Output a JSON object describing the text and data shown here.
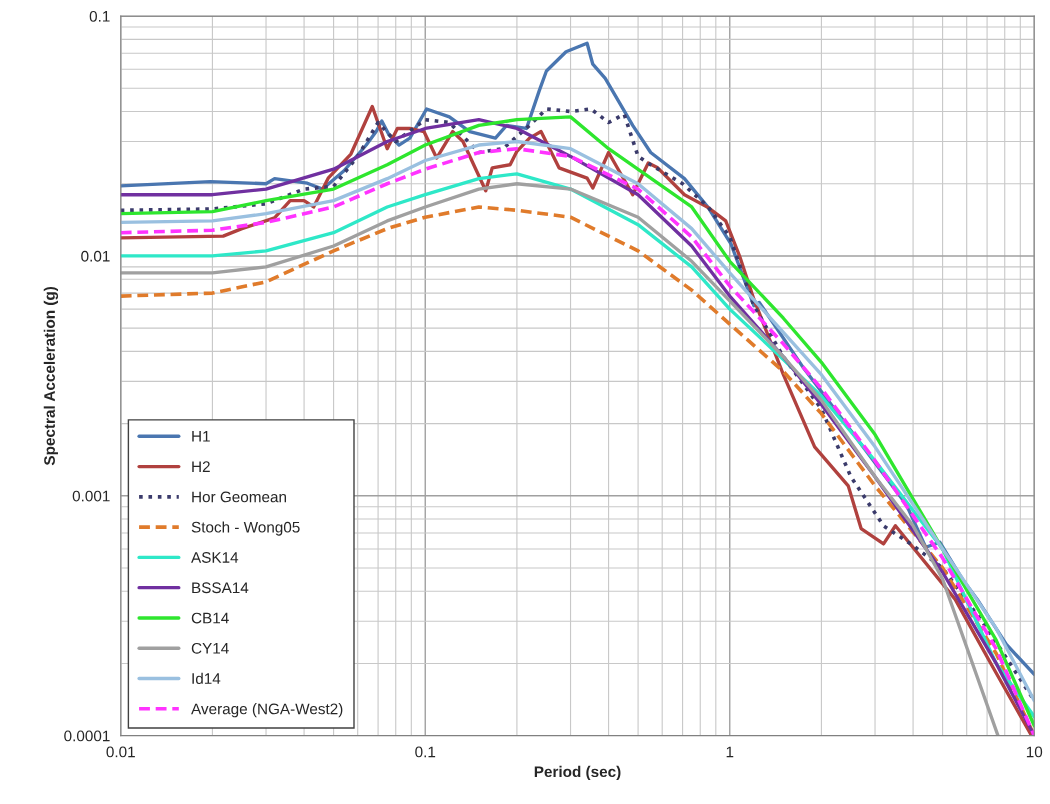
{
  "chart_data": {
    "type": "line",
    "xlabel": "Period (sec)",
    "ylabel": "Spectral Acceleration (g)",
    "log": "xy",
    "xlim": [
      0.01,
      10
    ],
    "ylim": [
      0.0001,
      0.1
    ],
    "xticks": [
      0.01,
      0.1,
      1,
      10
    ],
    "yticks": [
      0.0001,
      0.001,
      0.01,
      0.1
    ],
    "grid": true,
    "legend": "bottom left",
    "marker": "none",
    "series": [
      {
        "name": "H1",
        "color": "#4a76b0",
        "line_style": "solid",
        "x": [
          0.01,
          0.0197,
          0.03,
          0.032,
          0.041,
          0.046,
          0.054,
          0.064,
          0.069,
          0.072,
          0.076,
          0.082,
          0.089,
          0.101,
          0.12,
          0.14,
          0.17,
          0.185,
          0.215,
          0.237,
          0.25,
          0.29,
          0.34,
          0.355,
          0.39,
          0.48,
          0.55,
          0.71,
          0.85,
          1.01,
          1.2,
          1.25,
          1.75,
          2.4,
          3.8,
          4.4,
          4.9,
          5.8,
          6.5,
          8.1,
          10
        ],
        "values": [
          0.0196,
          0.0204,
          0.02,
          0.021,
          0.0201,
          0.019,
          0.0226,
          0.029,
          0.033,
          0.0365,
          0.032,
          0.029,
          0.031,
          0.041,
          0.038,
          0.033,
          0.031,
          0.035,
          0.034,
          0.049,
          0.059,
          0.071,
          0.077,
          0.063,
          0.055,
          0.035,
          0.027,
          0.021,
          0.0159,
          0.0112,
          0.0062,
          0.0064,
          0.0034,
          0.002,
          0.00092,
          0.00061,
          0.00064,
          0.00045,
          0.00037,
          0.00024,
          0.00018
        ]
      },
      {
        "name": "H2",
        "color": "#b0413e",
        "line_style": "solid",
        "x": [
          0.01,
          0.0217,
          0.025,
          0.032,
          0.036,
          0.04,
          0.043,
          0.048,
          0.057,
          0.067,
          0.075,
          0.081,
          0.089,
          0.099,
          0.109,
          0.123,
          0.133,
          0.158,
          0.166,
          0.19,
          0.2,
          0.22,
          0.24,
          0.275,
          0.34,
          0.355,
          0.4,
          0.48,
          0.54,
          0.58,
          0.71,
          0.85,
          0.97,
          1.08,
          1.2,
          1.5,
          1.9,
          2.45,
          2.7,
          3.2,
          3.5,
          5.5,
          7.2,
          9.8
        ],
        "values": [
          0.0119,
          0.0121,
          0.013,
          0.0144,
          0.017,
          0.017,
          0.016,
          0.0211,
          0.0266,
          0.042,
          0.028,
          0.034,
          0.034,
          0.033,
          0.0256,
          0.033,
          0.03,
          0.0187,
          0.0233,
          0.024,
          0.0273,
          0.031,
          0.033,
          0.0233,
          0.0211,
          0.0192,
          0.027,
          0.018,
          0.0244,
          0.0233,
          0.018,
          0.0159,
          0.014,
          0.0099,
          0.0066,
          0.0032,
          0.0016,
          0.0011,
          0.00073,
          0.00063,
          0.00075,
          0.00037,
          0.0002,
          0.0001
        ]
      },
      {
        "name": "Hor Geomean",
        "color": "#3b3b6b",
        "line_style": "dotted",
        "x": [
          0.01,
          0.02,
          0.03,
          0.04,
          0.05,
          0.06,
          0.07,
          0.08,
          0.1,
          0.12,
          0.15,
          0.18,
          0.22,
          0.25,
          0.3,
          0.35,
          0.4,
          0.45,
          0.5,
          0.55,
          0.7,
          0.85,
          1,
          1.2,
          1.5,
          2,
          2.5,
          3.2,
          4,
          5,
          7,
          10
        ],
        "values": [
          0.0155,
          0.0157,
          0.0165,
          0.019,
          0.0195,
          0.026,
          0.036,
          0.03,
          0.037,
          0.036,
          0.027,
          0.028,
          0.035,
          0.041,
          0.04,
          0.041,
          0.036,
          0.039,
          0.026,
          0.024,
          0.02,
          0.016,
          0.012,
          0.0062,
          0.0038,
          0.0023,
          0.0012,
          0.00075,
          0.00062,
          0.0005,
          0.00028,
          0.00014
        ]
      },
      {
        "name": "Stoch - Wong05",
        "color": "#e07b2b",
        "line_style": "dashed",
        "x": [
          0.01,
          0.02,
          0.03,
          0.05,
          0.075,
          0.1,
          0.15,
          0.2,
          0.3,
          0.5,
          0.75,
          1,
          1.5,
          2,
          3,
          5,
          7.5,
          10
        ],
        "values": [
          0.0068,
          0.007,
          0.0078,
          0.0105,
          0.013,
          0.0145,
          0.016,
          0.0155,
          0.0145,
          0.0105,
          0.0072,
          0.0052,
          0.0033,
          0.0022,
          0.0011,
          0.0005,
          0.00022,
          0.0001
        ]
      },
      {
        "name": "ASK14",
        "color": "#2ee8c8",
        "line_style": "solid",
        "x": [
          0.01,
          0.02,
          0.03,
          0.05,
          0.075,
          0.1,
          0.15,
          0.2,
          0.3,
          0.5,
          0.75,
          1,
          1.5,
          2,
          3,
          5,
          7.5,
          10
        ],
        "values": [
          0.01,
          0.01,
          0.0105,
          0.0125,
          0.016,
          0.018,
          0.021,
          0.022,
          0.019,
          0.0135,
          0.009,
          0.006,
          0.0037,
          0.0026,
          0.0014,
          0.0006,
          0.0002,
          0.00012
        ]
      },
      {
        "name": "BSSA14",
        "color": "#7030a0",
        "line_style": "solid",
        "x": [
          0.01,
          0.02,
          0.03,
          0.05,
          0.075,
          0.1,
          0.15,
          0.2,
          0.3,
          0.5,
          0.75,
          1,
          1.5,
          2,
          3,
          5,
          7.5,
          10
        ],
        "values": [
          0.018,
          0.018,
          0.019,
          0.023,
          0.03,
          0.034,
          0.037,
          0.034,
          0.026,
          0.018,
          0.011,
          0.0068,
          0.0038,
          0.0024,
          0.0012,
          0.00048,
          0.0002,
          0.0001
        ]
      },
      {
        "name": "CB14",
        "color": "#2ee62e",
        "line_style": "solid",
        "x": [
          0.01,
          0.02,
          0.03,
          0.05,
          0.075,
          0.1,
          0.15,
          0.2,
          0.3,
          0.4,
          0.75,
          1,
          1.5,
          2,
          3,
          5,
          7.5,
          10
        ],
        "values": [
          0.015,
          0.0153,
          0.017,
          0.019,
          0.024,
          0.029,
          0.035,
          0.037,
          0.038,
          0.028,
          0.016,
          0.0095,
          0.0055,
          0.0036,
          0.0018,
          0.0006,
          0.00025,
          0.00011
        ]
      },
      {
        "name": "CY14",
        "color": "#a0a0a0",
        "line_style": "solid",
        "x": [
          0.01,
          0.02,
          0.03,
          0.05,
          0.075,
          0.1,
          0.15,
          0.2,
          0.3,
          0.5,
          0.75,
          1,
          1.5,
          2,
          3,
          4,
          5,
          7.6
        ],
        "values": [
          0.0085,
          0.0085,
          0.009,
          0.011,
          0.014,
          0.016,
          0.019,
          0.02,
          0.019,
          0.0145,
          0.0095,
          0.0065,
          0.0038,
          0.0025,
          0.0012,
          0.00075,
          0.00045,
          0.0001
        ]
      },
      {
        "name": "Id14",
        "color": "#9ac0e0",
        "line_style": "solid",
        "x": [
          0.01,
          0.02,
          0.03,
          0.05,
          0.075,
          0.1,
          0.15,
          0.2,
          0.3,
          0.5,
          0.75,
          1,
          1.5,
          2,
          3,
          5,
          7.5,
          10
        ],
        "values": [
          0.0138,
          0.014,
          0.015,
          0.017,
          0.021,
          0.025,
          0.029,
          0.03,
          0.028,
          0.02,
          0.013,
          0.0085,
          0.0048,
          0.0032,
          0.0016,
          0.0006,
          0.00028,
          0.00014
        ]
      },
      {
        "name": "Average (NGA-West2)",
        "color": "#ff33ff",
        "line_style": "dashed",
        "x": [
          0.01,
          0.02,
          0.03,
          0.05,
          0.075,
          0.1,
          0.15,
          0.2,
          0.3,
          0.5,
          0.75,
          1,
          1.5,
          2,
          3,
          5,
          7.5,
          10
        ],
        "values": [
          0.0125,
          0.0128,
          0.0138,
          0.016,
          0.02,
          0.023,
          0.027,
          0.028,
          0.026,
          0.019,
          0.012,
          0.0075,
          0.0043,
          0.0028,
          0.0014,
          0.00055,
          0.00023,
          0.0001
        ]
      }
    ]
  }
}
